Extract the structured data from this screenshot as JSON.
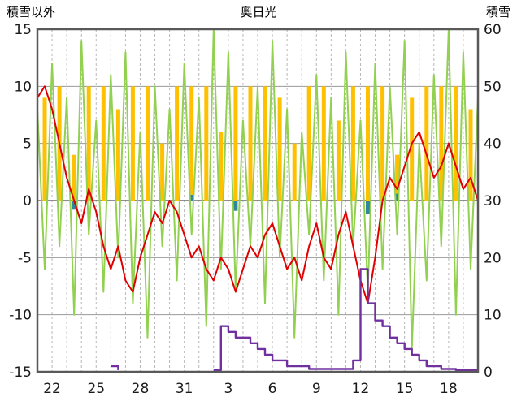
{
  "chart_data": {
    "type": "line",
    "title": "奥日光",
    "left_axis": {
      "label": "積雪以外",
      "min": -15,
      "max": 15,
      "ticks": [
        15,
        10,
        5,
        0,
        -5,
        -10,
        -15
      ]
    },
    "right_axis": {
      "label": "積雪",
      "min": 0,
      "max": 60,
      "ticks": [
        60,
        50,
        40,
        30,
        20,
        10,
        0
      ]
    },
    "x_axis": {
      "days_span": 30,
      "tick_days": [
        1,
        4,
        7,
        10,
        13,
        16,
        19,
        22,
        25,
        28
      ],
      "tick_labels": [
        "22",
        "25",
        "28",
        "31",
        "3",
        "6",
        "9",
        "12",
        "15",
        "18"
      ]
    },
    "sample_step_days": 0.5,
    "colors": {
      "green": "#92d050",
      "red": "#e00000",
      "orange": "#ffc000",
      "blue": "#31859c",
      "purple": "#7030a0",
      "grid": "#999999",
      "grid_dashed": "#b7b7b7",
      "zero_line": "#7f7f7f",
      "border": "#595959",
      "tick_text": "#1a1a1a"
    },
    "series": [
      {
        "name": "orange-bars",
        "axis": "left",
        "type": "bar",
        "color": "#ffc000",
        "per_day": true,
        "values": [
          9,
          10,
          4,
          10,
          10,
          8,
          10,
          10,
          5,
          10,
          10,
          10,
          6,
          10,
          10,
          10,
          9,
          5,
          10,
          10,
          7,
          10,
          10,
          10,
          4,
          9,
          10,
          10,
          10,
          8
        ]
      },
      {
        "name": "blue-bars",
        "axis": "left",
        "type": "bar",
        "color": "#31859c",
        "per_day": true,
        "values": [
          0,
          0,
          -0.8,
          0,
          0,
          0,
          0,
          0,
          0,
          0,
          0.5,
          0,
          0,
          -0.9,
          0,
          0,
          0,
          0,
          0,
          0,
          0,
          0,
          -1.2,
          0,
          0.6,
          0,
          0,
          0,
          0,
          0
        ]
      },
      {
        "name": "green-spiky-line",
        "axis": "left",
        "type": "line",
        "color": "#92d050",
        "values": [
          8,
          -6,
          12,
          -4,
          9,
          -10,
          14,
          -3,
          7,
          -8,
          11,
          -5,
          13,
          -9,
          6,
          -12,
          10,
          -4,
          8,
          -7,
          12,
          -3,
          9,
          -11,
          15,
          -6,
          13,
          -8,
          7,
          -4,
          10,
          -9,
          14,
          -5,
          8,
          -12,
          6,
          -3,
          11,
          -7,
          9,
          -10,
          13,
          -4,
          7,
          -8,
          12,
          -6,
          10,
          -3,
          14,
          -13,
          5,
          -7,
          11,
          -4,
          15,
          -10,
          13,
          -6,
          9
        ]
      },
      {
        "name": "red-line",
        "axis": "left",
        "type": "line",
        "color": "#e00000",
        "values": [
          9,
          10,
          8,
          5,
          2,
          0,
          -2,
          1,
          -1,
          -4,
          -6,
          -4,
          -7,
          -8,
          -5,
          -3,
          -1,
          -2,
          0,
          -1,
          -3,
          -5,
          -4,
          -6,
          -7,
          -5,
          -6,
          -8,
          -6,
          -4,
          -5,
          -3,
          -2,
          -4,
          -6,
          -5,
          -7,
          -4,
          -2,
          -5,
          -6,
          -3,
          -1,
          -4,
          -7,
          -9,
          -5,
          0,
          2,
          1,
          3,
          5,
          6,
          4,
          2,
          3,
          5,
          3,
          1,
          2,
          0
        ]
      },
      {
        "name": "purple-step-line",
        "axis": "right",
        "type": "step",
        "color": "#7030a0",
        "values": [
          null,
          null,
          null,
          null,
          null,
          null,
          null,
          null,
          null,
          null,
          1,
          0.3,
          null,
          null,
          null,
          null,
          null,
          null,
          null,
          null,
          null,
          null,
          null,
          null,
          0.3,
          8,
          7,
          6,
          6,
          5,
          4,
          3,
          2,
          2,
          1,
          1,
          1,
          0.5,
          0.5,
          0.5,
          0.5,
          0.5,
          0.5,
          2,
          18,
          12,
          9,
          8,
          6,
          5,
          4,
          3,
          2,
          1,
          1,
          0.5,
          0.5,
          0.3,
          0.3,
          0.3,
          0.3
        ]
      }
    ]
  }
}
